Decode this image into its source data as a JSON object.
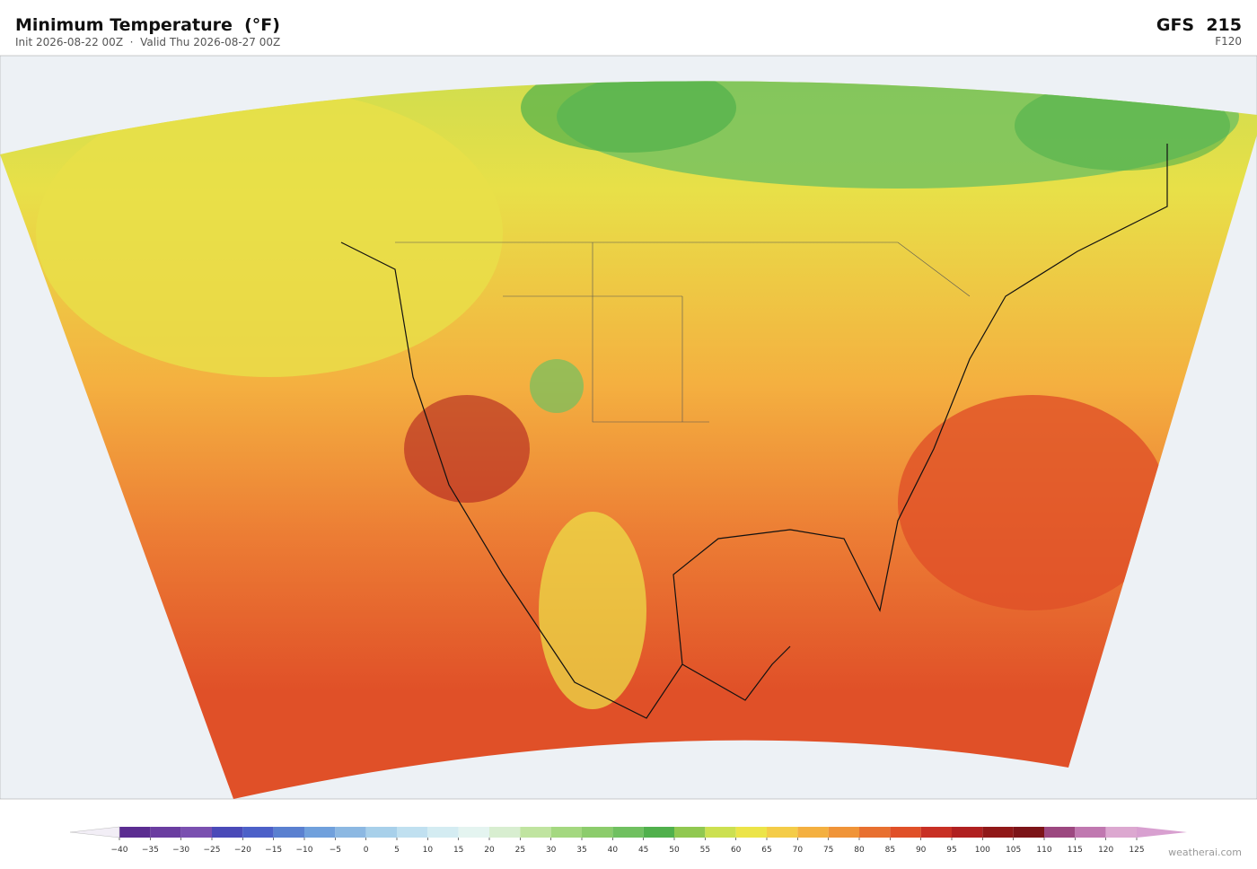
{
  "header": {
    "title": "Minimum Temperature  (°F)",
    "subtitle": "Init 2026-08-22 00Z  ·  Valid Thu 2026-08-27 00Z",
    "model": "GFS  215",
    "forecast_hour": "F120"
  },
  "colorbar": {
    "ticks": [
      {
        "value": -40,
        "label": "−40"
      },
      {
        "value": -35,
        "label": "−35"
      },
      {
        "value": -30,
        "label": "−30"
      },
      {
        "value": -25,
        "label": "−25"
      },
      {
        "value": -20,
        "label": "−20"
      },
      {
        "value": -15,
        "label": "−15"
      },
      {
        "value": -10,
        "label": "−10"
      },
      {
        "value": -5,
        "label": "−5"
      },
      0,
      5,
      10,
      15,
      20,
      25,
      30,
      35,
      40,
      45,
      50,
      55,
      60,
      65,
      70,
      75,
      80,
      85,
      90,
      95,
      100,
      105,
      110,
      115,
      120,
      125
    ],
    "colors": [
      "#5b2d91",
      "#6a3da0",
      "#7a50b0",
      "#4a4ab8",
      "#4c60c8",
      "#5a80d0",
      "#70a0dc",
      "#8cb8e2",
      "#a8d0ea",
      "#c0e0f0",
      "#d4ecf2",
      "#e4f4f0",
      "#d8eed0",
      "#c0e4a0",
      "#a4d880",
      "#8ccc6c",
      "#70c060",
      "#50b04c",
      "#90c850",
      "#cce050",
      "#ece448",
      "#f4cc48",
      "#f4b040",
      "#f09438",
      "#e87030",
      "#e05028",
      "#c83024",
      "#b02020",
      "#901818",
      "#7c1418",
      "#9c4880",
      "#c078b0",
      "#dca8d0"
    ],
    "under_color": "#f2eef6",
    "over_color": "#d8a0d0"
  },
  "footer": {
    "credit": "weatherai.com"
  }
}
